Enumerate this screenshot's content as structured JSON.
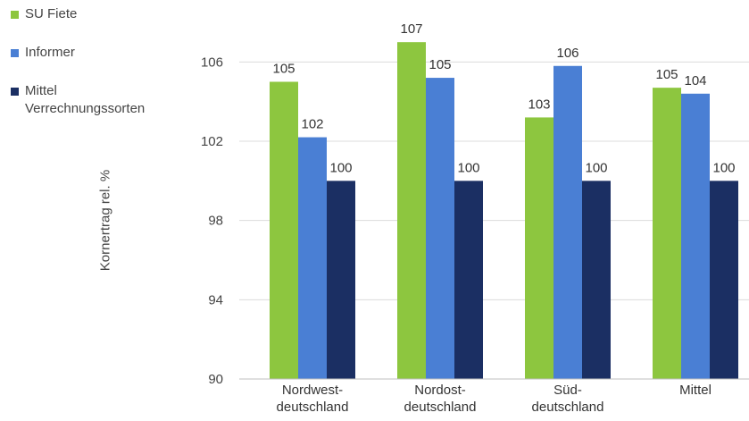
{
  "chart_data": {
    "type": "bar",
    "title": "",
    "xlabel": "",
    "ylabel": "Kornertrag rel. %",
    "ylim": [
      90,
      108
    ],
    "yticks": [
      90,
      94,
      98,
      102,
      106
    ],
    "grid": true,
    "legend_position": "top-left",
    "categories": [
      [
        "Nordwest-",
        "deutschland"
      ],
      [
        "Nordost-",
        "deutschland"
      ],
      [
        "Süd-",
        "deutschland"
      ],
      [
        "Mittel"
      ]
    ],
    "series": [
      {
        "name": "SU Fiete",
        "color": "#8dc63f",
        "values": [
          105,
          107,
          103.2,
          104.7
        ],
        "labels": [
          "105",
          "107",
          "103",
          "105"
        ]
      },
      {
        "name": "Informer",
        "color": "#4a7fd4",
        "values": [
          102.2,
          105.2,
          105.8,
          104.4
        ],
        "labels": [
          "102",
          "105",
          "106",
          "104"
        ]
      },
      {
        "name": "Mittel Verrechnungssorten",
        "color": "#1b2f63",
        "values": [
          100,
          100,
          100,
          100
        ],
        "labels": [
          "100",
          "100",
          "100",
          "100"
        ]
      }
    ]
  },
  "legend": {
    "items": [
      {
        "lines": [
          "SU Fiete"
        ],
        "color": "#8dc63f"
      },
      {
        "lines": [
          "Informer"
        ],
        "color": "#4a7fd4"
      },
      {
        "lines": [
          "Mittel",
          "Verrechnungssorten"
        ],
        "color": "#1b2f63"
      }
    ]
  }
}
